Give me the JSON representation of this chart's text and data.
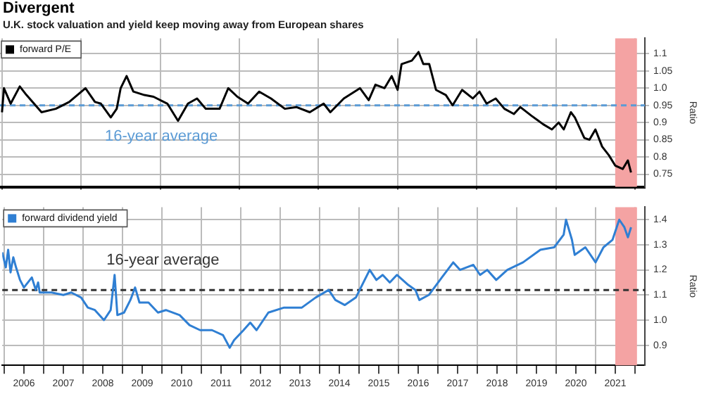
{
  "chart_data": [
    {
      "type": "line",
      "title": "Divergent",
      "subtitle": "U.K. stock valuation and yield keep moving away from European shares",
      "ylabel": "Ratio",
      "legend": "top left",
      "grid": true,
      "marker": "none",
      "tick_labels": "y",
      "xlim": [
        2005.95,
        2022.25
      ],
      "ylim": [
        0.713,
        1.145
      ],
      "xticks": [
        {
          "value": 2006,
          "label": null
        },
        {
          "value": 2008,
          "label": null
        },
        {
          "value": 2010,
          "label": null
        },
        {
          "value": 2012,
          "label": null
        },
        {
          "value": 2014,
          "label": null
        },
        {
          "value": 2016,
          "label": null
        },
        {
          "value": 2018,
          "label": null
        },
        {
          "value": 2020,
          "label": null
        },
        {
          "value": 2022,
          "label": null
        }
      ],
      "yticks": [
        0.75,
        0.8,
        0.85,
        0.9,
        0.95,
        {
          "value": 1,
          "label": "1.0"
        },
        1.05,
        1.1
      ],
      "series": [
        {
          "name": "forward P/E",
          "color": "#000000",
          "x": [
            2006,
            2006.05,
            2006.22,
            2006.45,
            2006.62,
            2007,
            2007.36,
            2007.7,
            2008.11,
            2008.35,
            2008.5,
            2008.75,
            2008.9,
            2009,
            2009.15,
            2009.32,
            2009.6,
            2009.83,
            2010.18,
            2010.45,
            2010.7,
            2010.93,
            2011.15,
            2011.5,
            2011.72,
            2011.95,
            2012.22,
            2012.5,
            2012.8,
            2013.15,
            2013.44,
            2013.78,
            2014.13,
            2014.3,
            2014.64,
            2015.05,
            2015.27,
            2015.44,
            2015.67,
            2015.85,
            2016,
            2016.1,
            2016.36,
            2016.53,
            2016.65,
            2016.8,
            2016.97,
            2017.22,
            2017.39,
            2017.63,
            2017.9,
            2018.07,
            2018.25,
            2018.48,
            2018.7,
            2018.94,
            2019.1,
            2019.38,
            2019.68,
            2019.9,
            2020.07,
            2020.2,
            2020.38,
            2020.48,
            2020.72,
            2020.85,
            2021,
            2021.17,
            2021.34,
            2021.5,
            2021.69,
            2021.82,
            2021.9
          ],
          "values": [
            0.93,
            1.0,
            0.955,
            1.005,
            0.98,
            0.93,
            0.94,
            0.96,
            1.0,
            0.96,
            0.955,
            0.915,
            0.94,
            1.0,
            1.035,
            0.99,
            0.98,
            0.975,
            0.955,
            0.905,
            0.955,
            0.97,
            0.94,
            0.94,
            1.0,
            0.975,
            0.955,
            0.99,
            0.97,
            0.94,
            0.945,
            0.93,
            0.955,
            0.93,
            0.97,
            1.0,
            0.965,
            1.01,
            1.0,
            1.035,
            0.995,
            1.07,
            1.08,
            1.105,
            1.07,
            1.07,
            0.995,
            0.98,
            0.95,
            0.995,
            0.97,
            0.99,
            0.955,
            0.97,
            0.94,
            0.925,
            0.945,
            0.92,
            0.895,
            0.88,
            0.9,
            0.88,
            0.93,
            0.915,
            0.855,
            0.85,
            0.88,
            0.83,
            0.805,
            0.775,
            0.765,
            0.79,
            0.755
          ]
        }
      ],
      "ref_lines": [
        {
          "axis": "y",
          "value": 0.95,
          "color": "#5b9bd5",
          "line_style": "dashed",
          "label": "16-year average"
        }
      ],
      "bands": [
        {
          "axis": "x",
          "from": 2021.5,
          "to": 2022.05,
          "color": "#f4a3a3"
        }
      ]
    },
    {
      "type": "line",
      "ylabel": "Ratio",
      "legend": "top left",
      "grid": true,
      "marker": "none",
      "xlim": [
        2005.95,
        2022.25
      ],
      "ylim": [
        0.82,
        1.45
      ],
      "xticks": [
        {
          "value": 2006,
          "label": null
        },
        {
          "value": 2006.5,
          "label": "2006"
        },
        {
          "value": 2007,
          "label": null
        },
        {
          "value": 2007.5,
          "label": "2007"
        },
        {
          "value": 2008,
          "label": null
        },
        {
          "value": 2008.5,
          "label": "2008"
        },
        {
          "value": 2009,
          "label": null
        },
        {
          "value": 2009.5,
          "label": "2009"
        },
        {
          "value": 2010,
          "label": null
        },
        {
          "value": 2010.5,
          "label": "2010"
        },
        {
          "value": 2011,
          "label": null
        },
        {
          "value": 2011.5,
          "label": "2011"
        },
        {
          "value": 2012,
          "label": null
        },
        {
          "value": 2012.5,
          "label": "2012"
        },
        {
          "value": 2013,
          "label": null
        },
        {
          "value": 2013.5,
          "label": "2013"
        },
        {
          "value": 2014,
          "label": null
        },
        {
          "value": 2014.5,
          "label": "2014"
        },
        {
          "value": 2015,
          "label": null
        },
        {
          "value": 2015.5,
          "label": "2015"
        },
        {
          "value": 2016,
          "label": null
        },
        {
          "value": 2016.5,
          "label": "2016"
        },
        {
          "value": 2017,
          "label": null
        },
        {
          "value": 2017.5,
          "label": "2017"
        },
        {
          "value": 2018,
          "label": null
        },
        {
          "value": 2018.5,
          "label": "2018"
        },
        {
          "value": 2019,
          "label": null
        },
        {
          "value": 2019.5,
          "label": "2019"
        },
        {
          "value": 2020,
          "label": null
        },
        {
          "value": 2020.5,
          "label": "2020"
        },
        {
          "value": 2021,
          "label": null
        },
        {
          "value": 2021.5,
          "label": "2021"
        },
        {
          "value": 2022,
          "label": null
        }
      ],
      "yticks": [
        0.9,
        {
          "value": 1,
          "label": "1.0"
        },
        1.1,
        1.2,
        1.3,
        1.4
      ],
      "series": [
        {
          "name": "forward dividend yield",
          "color": "#2f7fd3",
          "x": [
            2005.95,
            2006.04,
            2006.1,
            2006.16,
            2006.23,
            2006.3,
            2006.4,
            2006.5,
            2006.7,
            2006.8,
            2006.86,
            2006.9,
            2007.2,
            2007.5,
            2007.7,
            2007.95,
            2008.12,
            2008.3,
            2008.53,
            2008.7,
            2008.8,
            2008.87,
            2009.04,
            2009.2,
            2009.32,
            2009.43,
            2009.66,
            2009.9,
            2010.1,
            2010.45,
            2010.7,
            2010.97,
            2011.27,
            2011.55,
            2011.72,
            2011.83,
            2012.07,
            2012.24,
            2012.4,
            2012.7,
            2013.1,
            2013.55,
            2013.9,
            2014.23,
            2014.4,
            2014.64,
            2014.92,
            2015.27,
            2015.44,
            2015.6,
            2015.78,
            2015.96,
            2016.25,
            2016.43,
            2016.53,
            2016.77,
            2017.1,
            2017.39,
            2017.56,
            2017.9,
            2018.07,
            2018.25,
            2018.48,
            2018.76,
            2019.16,
            2019.6,
            2019.95,
            2020.19,
            2020.25,
            2020.4,
            2020.47,
            2020.74,
            2021,
            2021.2,
            2021.43,
            2021.6,
            2021.73,
            2021.82,
            2021.9
          ],
          "values": [
            1.27,
            1.21,
            1.28,
            1.19,
            1.25,
            1.21,
            1.16,
            1.13,
            1.17,
            1.12,
            1.15,
            1.11,
            1.11,
            1.1,
            1.11,
            1.09,
            1.05,
            1.04,
            1.0,
            1.04,
            1.18,
            1.02,
            1.03,
            1.08,
            1.13,
            1.07,
            1.07,
            1.03,
            1.04,
            1.02,
            0.98,
            0.96,
            0.96,
            0.94,
            0.89,
            0.92,
            0.96,
            0.99,
            0.96,
            1.03,
            1.05,
            1.05,
            1.09,
            1.12,
            1.08,
            1.06,
            1.09,
            1.2,
            1.16,
            1.18,
            1.15,
            1.18,
            1.14,
            1.12,
            1.08,
            1.1,
            1.17,
            1.23,
            1.2,
            1.22,
            1.18,
            1.2,
            1.16,
            1.2,
            1.23,
            1.28,
            1.29,
            1.34,
            1.4,
            1.32,
            1.26,
            1.29,
            1.23,
            1.29,
            1.32,
            1.4,
            1.37,
            1.33,
            1.37
          ]
        }
      ],
      "ref_lines": [
        {
          "axis": "y",
          "value": 1.12,
          "color": "#333333",
          "line_style": "dashed",
          "label": "16-year average"
        }
      ],
      "bands": [
        {
          "axis": "x",
          "from": 2021.5,
          "to": 2022.05,
          "color": "#f4a3a3"
        }
      ]
    }
  ]
}
